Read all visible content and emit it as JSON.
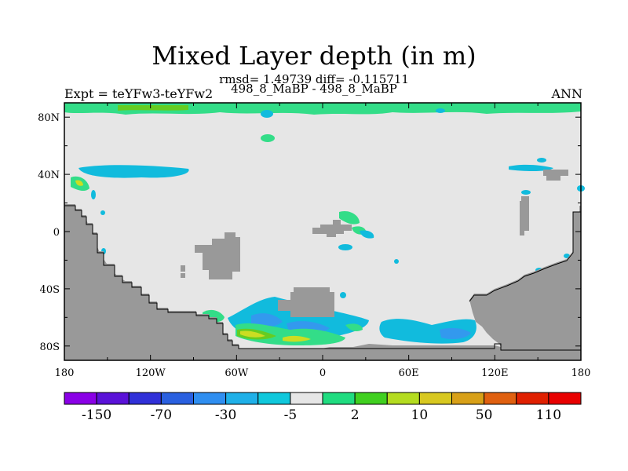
{
  "title": "Mixed Layer depth (in m)",
  "stats_line": "rmsd= 1.49739 diff= -0.115711",
  "case_line": "498_8_MaBP - 498_8_MaBP",
  "expt_label": "Expt = teYFw3-teYFw2",
  "season_label": "ANN",
  "colors": {
    "ocean_neutral": "#e6e6e6",
    "land": "#999999",
    "pos_small": "#33dd88",
    "pos_mid": "#66cc22",
    "pos_high": "#ccdd22",
    "neg_small": "#11bbdd",
    "neg_mid": "#3399ee"
  },
  "x_axis": {
    "range": [
      -180,
      180
    ],
    "ticks": [
      {
        "value": -180,
        "label": "180"
      },
      {
        "value": -120,
        "label": "120W"
      },
      {
        "value": -60,
        "label": "60W"
      },
      {
        "value": 0,
        "label": "0"
      },
      {
        "value": 60,
        "label": "60E"
      },
      {
        "value": 120,
        "label": "120E"
      },
      {
        "value": 180,
        "label": "180"
      }
    ]
  },
  "y_axis": {
    "range": [
      -90,
      90
    ],
    "ticks": [
      {
        "value": 80,
        "label": "80N"
      },
      {
        "value": 40,
        "label": "40N"
      },
      {
        "value": 0,
        "label": "0"
      },
      {
        "value": -40,
        "label": "40S"
      },
      {
        "value": -80,
        "label": "80S"
      }
    ]
  },
  "colorbar": {
    "colors": [
      "#8a00e6",
      "#5a12d8",
      "#3030d8",
      "#2a60e0",
      "#2f8ef0",
      "#1fb0e8",
      "#10c8dc",
      "#e6e6e6",
      "#20dc80",
      "#40d020",
      "#b4dc20",
      "#d8c820",
      "#d8a018",
      "#e06010",
      "#e02000",
      "#e80000"
    ],
    "labels": [
      {
        "boundary": 1,
        "text": "-150"
      },
      {
        "boundary": 3,
        "text": "-70"
      },
      {
        "boundary": 5,
        "text": "-30"
      },
      {
        "boundary": 7,
        "text": "-5"
      },
      {
        "boundary": 9,
        "text": "2"
      },
      {
        "boundary": 11,
        "text": "10"
      },
      {
        "boundary": 13,
        "text": "50"
      },
      {
        "boundary": 15,
        "text": "110"
      }
    ]
  }
}
